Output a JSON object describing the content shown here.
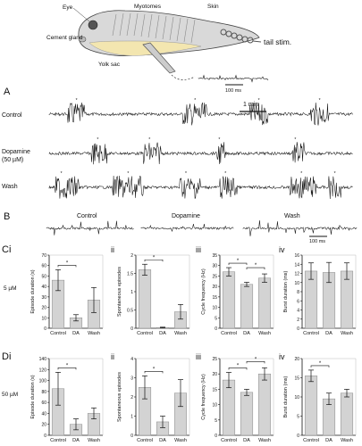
{
  "schematic": {
    "labels": {
      "eye": "Eye",
      "myotomes": "Myotomes",
      "skin": "Skin",
      "cement_gland": "Cement gland",
      "yolk_sac": "Yolk sac",
      "tail_stim": "tail stim.",
      "scale": "100 ms"
    }
  },
  "panel_a": {
    "letter": "A",
    "scale": "1 min",
    "rows": [
      {
        "label": "Control",
        "bursts": [
          [
            0.06,
            0.12
          ],
          [
            0.44,
            0.52
          ],
          [
            0.66,
            0.72
          ],
          [
            0.86,
            0.92
          ]
        ],
        "stars": [
          0.09,
          0.48,
          0.69,
          0.89
        ]
      },
      {
        "label": "Dopamine",
        "label2": "(50 µM)",
        "bursts": [
          [
            0.14,
            0.19
          ],
          [
            0.31,
            0.37
          ],
          [
            0.55,
            0.58
          ],
          [
            0.8,
            0.84
          ]
        ],
        "stars": [
          0.16,
          0.33,
          0.56,
          0.81
        ]
      },
      {
        "label": "Wash",
        "bursts": [
          [
            0.02,
            0.1
          ],
          [
            0.21,
            0.31
          ],
          [
            0.43,
            0.5
          ],
          [
            0.56,
            0.62
          ],
          [
            0.79,
            0.88
          ],
          [
            0.92,
            0.96
          ]
        ],
        "stars": [
          0.04,
          0.26,
          0.45,
          0.58,
          0.83,
          0.94
        ]
      }
    ]
  },
  "panel_b": {
    "letter": "B",
    "labels": [
      "Control",
      "Dopamine",
      "Wash"
    ],
    "scale": "100 ms"
  },
  "conc_c": "5 µM",
  "conc_d": "50 µM",
  "chart_data": [
    {
      "id": "Ci",
      "panel_label": "Ci",
      "type": "bar",
      "ylabel": "Episode duration (s)",
      "categories": [
        "Control",
        "DA",
        "Wash"
      ],
      "values": [
        46,
        10,
        27
      ],
      "errors": [
        10,
        3,
        12
      ],
      "ylim": [
        0,
        70
      ],
      "ticks": [
        0,
        10,
        20,
        30,
        40,
        50,
        60,
        70
      ],
      "sig": [
        [
          0,
          1
        ]
      ]
    },
    {
      "id": "Cii",
      "panel_label": "ii",
      "type": "bar",
      "ylabel": "Spontaneous episodes",
      "categories": [
        "Control",
        "DA",
        "Wash"
      ],
      "values": [
        1.6,
        0.02,
        0.45
      ],
      "errors": [
        0.15,
        0.01,
        0.2
      ],
      "ylim": [
        0,
        2
      ],
      "ticks": [
        0,
        0.5,
        1,
        1.5,
        2
      ],
      "sig": [
        [
          0,
          1
        ]
      ]
    },
    {
      "id": "Ciii",
      "panel_label": "iii",
      "type": "bar",
      "ylabel": "Cycle frequency (Hz)",
      "categories": [
        "Control",
        "DA",
        "Wash"
      ],
      "values": [
        27,
        21,
        24
      ],
      "errors": [
        2,
        1,
        2
      ],
      "ylim": [
        0,
        35
      ],
      "ticks": [
        0,
        5,
        10,
        15,
        20,
        25,
        30,
        35
      ],
      "sig": [
        [
          0,
          1
        ],
        [
          1,
          2
        ]
      ]
    },
    {
      "id": "Civ",
      "panel_label": "iv",
      "type": "bar",
      "ylabel": "Burst duration (ms)",
      "categories": [
        "Control",
        "DA",
        "Wash"
      ],
      "values": [
        12.5,
        12.2,
        12.5
      ],
      "errors": [
        1.8,
        2.2,
        1.8
      ],
      "ylim": [
        0,
        16
      ],
      "ticks": [
        0,
        2,
        4,
        6,
        8,
        10,
        12,
        14,
        16
      ],
      "sig": []
    },
    {
      "id": "Di",
      "panel_label": "Di",
      "type": "bar",
      "ylabel": "Episode duration (s)",
      "categories": [
        "Control",
        "DA",
        "Wash"
      ],
      "values": [
        85,
        20,
        40
      ],
      "errors": [
        30,
        10,
        10
      ],
      "ylim": [
        0,
        140
      ],
      "ticks": [
        0,
        20,
        40,
        60,
        80,
        100,
        120,
        140
      ],
      "sig": [
        [
          0,
          1
        ]
      ]
    },
    {
      "id": "Dii",
      "panel_label": "ii",
      "type": "bar",
      "ylabel": "Spontaneous episodes",
      "categories": [
        "Control",
        "DA",
        "Wash"
      ],
      "values": [
        2.5,
        0.7,
        2.2
      ],
      "errors": [
        0.6,
        0.3,
        0.7
      ],
      "ylim": [
        0,
        4
      ],
      "ticks": [
        0,
        1,
        2,
        3,
        4
      ],
      "sig": [
        [
          0,
          1
        ]
      ]
    },
    {
      "id": "Diii",
      "panel_label": "iii",
      "type": "bar",
      "ylabel": "Cycle frequency (Hz)",
      "categories": [
        "Control",
        "DA",
        "Wash"
      ],
      "values": [
        18,
        14,
        20
      ],
      "errors": [
        2.5,
        1,
        2
      ],
      "ylim": [
        0,
        25
      ],
      "ticks": [
        0,
        5,
        10,
        15,
        20,
        25
      ],
      "sig": [
        [
          0,
          1
        ],
        [
          1,
          2
        ]
      ]
    },
    {
      "id": "Div",
      "panel_label": "iv",
      "type": "bar",
      "ylabel": "Burst duration (ms)",
      "categories": [
        "Control",
        "DA",
        "Wash"
      ],
      "values": [
        15.5,
        9.5,
        11
      ],
      "errors": [
        1.5,
        1.5,
        1
      ],
      "ylim": [
        0,
        20
      ],
      "ticks": [
        0,
        5,
        10,
        15,
        20
      ],
      "sig": [
        [
          0,
          1
        ]
      ]
    }
  ]
}
